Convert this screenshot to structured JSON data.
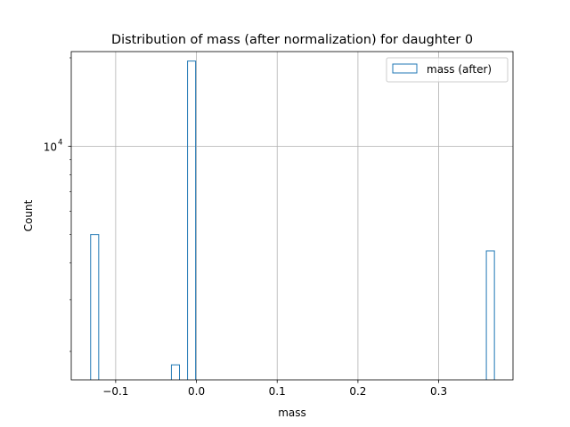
{
  "chart_data": {
    "type": "bar",
    "title": "Distribution of mass (after normalization) for daughter 0",
    "xlabel": "mass",
    "ylabel": "Count",
    "yscale": "log",
    "xlim": [
      -0.155,
      0.392
    ],
    "ylim": [
      1600,
      21000
    ],
    "grid": true,
    "legend_position": "top-right",
    "x_ticks": [
      {
        "value": -0.1,
        "label": "−0.1"
      },
      {
        "value": 0.0,
        "label": "0.0"
      },
      {
        "value": 0.1,
        "label": "0.1"
      },
      {
        "value": 0.2,
        "label": "0.2"
      },
      {
        "value": 0.3,
        "label": "0.3"
      }
    ],
    "y_ticks": [
      {
        "value": 10000,
        "label_base": "10",
        "label_exp": "4"
      }
    ],
    "series": [
      {
        "name": "mass (after)",
        "style": "step",
        "color": "#1f77b4",
        "bins": [
          {
            "x0": -0.131,
            "x1": -0.121,
            "count": 5000
          },
          {
            "x0": -0.031,
            "x1": -0.021,
            "count": 1800
          },
          {
            "x0": -0.011,
            "x1": -0.001,
            "count": 19500
          },
          {
            "x0": 0.359,
            "x1": 0.369,
            "count": 4400
          }
        ]
      }
    ]
  }
}
